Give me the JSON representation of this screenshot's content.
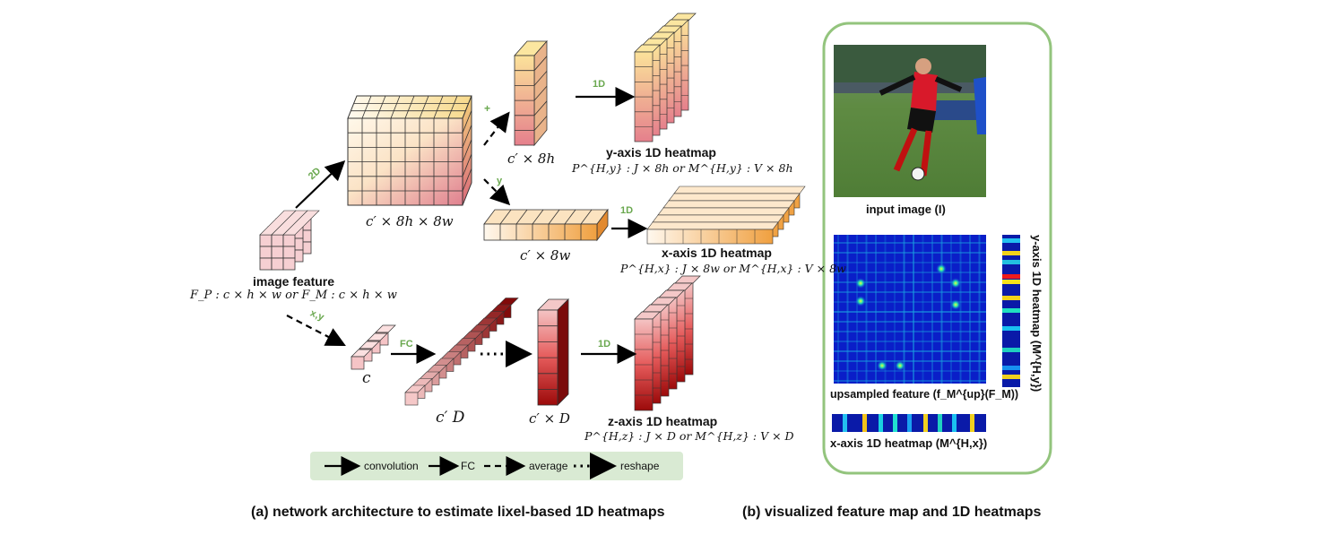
{
  "arch": {
    "image_feature": {
      "title": "image feature",
      "formula": "F_P : c × h × w   or   F_M : c × h × w"
    },
    "cube_label": "c′ × 8h × 8w",
    "y_col_label": "c′ × 8h",
    "x_slab_label": "c′ × 8w",
    "z_in_label": "c",
    "fc_label_out": "c′ D",
    "z_mid_label": "c′ × D",
    "arrows": {
      "a2d": "2D",
      "plus": "+",
      "y": "y",
      "xy": "x,y",
      "fc": "FC",
      "one_d_a": "1D",
      "one_d_b": "1D",
      "one_d_c": "1D"
    },
    "y_heatmap": {
      "title": "y-axis 1D heatmap",
      "formula": "P^{H,y} : J × 8h   or   M^{H,y} : V × 8h"
    },
    "x_heatmap": {
      "title": "x-axis 1D heatmap",
      "formula": "P^{H,x} : J × 8w   or   M^{H,x} : V × 8w"
    },
    "z_heatmap": {
      "title": "z-axis 1D heatmap",
      "formula": "P^{H,z} : J × D   or   M^{H,z} : V × D"
    },
    "legend": {
      "convolution": "convolution",
      "fc": "FC",
      "average": "average",
      "reshape": "reshape"
    }
  },
  "vis": {
    "input_caption": "input image (I)",
    "upsampled_caption": "upsampled feature (f_M^{up}(F_M))",
    "x_heat_caption": "x-axis 1D heatmap (M^{H,x})",
    "y_heat_caption": "y-axis 1D heatmap (M^{H,y})"
  },
  "captions": {
    "a": "(a) network architecture to estimate lixel-based 1D heatmaps",
    "b": "(b) visualized feature map and 1D heatmaps"
  },
  "colors": {
    "accent_green": "#6aa84f",
    "panel_border": "#93c47d",
    "legend_bg": "#d9ead3"
  }
}
